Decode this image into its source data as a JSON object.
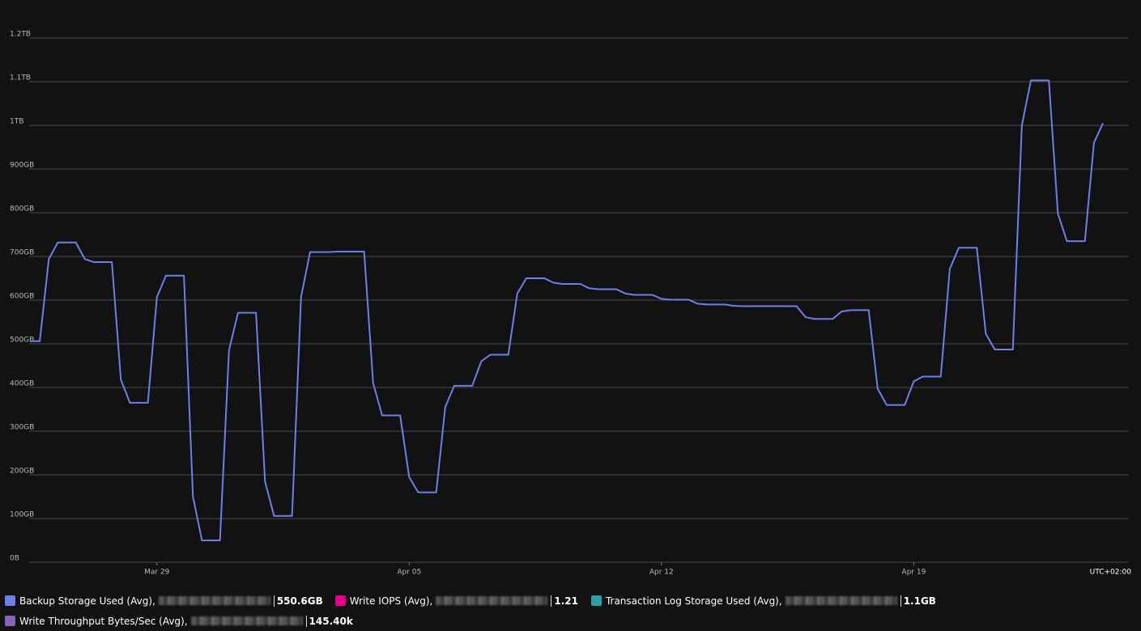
{
  "chart_data": {
    "type": "line",
    "grid": true,
    "timezone": "UTC+02:00",
    "ylim": [
      0,
      1200
    ],
    "yticks": [
      {
        "value": 0,
        "label": "0B"
      },
      {
        "value": 100,
        "label": "100GB"
      },
      {
        "value": 200,
        "label": "200GB"
      },
      {
        "value": 300,
        "label": "300GB"
      },
      {
        "value": 400,
        "label": "400GB"
      },
      {
        "value": 500,
        "label": "500GB"
      },
      {
        "value": 600,
        "label": "600GB"
      },
      {
        "value": 700,
        "label": "700GB"
      },
      {
        "value": 800,
        "label": "800GB"
      },
      {
        "value": 900,
        "label": "900GB"
      },
      {
        "value": 1000,
        "label": "1TB"
      },
      {
        "value": 1100,
        "label": "1.1TB"
      },
      {
        "value": 1200,
        "label": "1.2TB"
      }
    ],
    "categories": [
      null,
      null,
      null,
      null,
      null,
      null,
      null,
      null,
      null,
      null,
      null,
      null,
      null,
      null,
      "Mar 29",
      null,
      null,
      null,
      null,
      null,
      null,
      null,
      null,
      null,
      null,
      null,
      null,
      null,
      null,
      null,
      null,
      null,
      null,
      null,
      null,
      null,
      null,
      null,
      null,
      null,
      null,
      null,
      "Apr 05",
      null,
      null,
      null,
      null,
      null,
      null,
      null,
      null,
      null,
      null,
      null,
      null,
      null,
      null,
      null,
      null,
      null,
      null,
      null,
      null,
      null,
      null,
      null,
      null,
      null,
      null,
      null,
      "Apr 12",
      null,
      null,
      null,
      null,
      null,
      null,
      null,
      null,
      null,
      null,
      null,
      null,
      null,
      null,
      null,
      null,
      null,
      null,
      null,
      null,
      null,
      null,
      null,
      null,
      null,
      null,
      null,
      "Apr 19",
      null,
      null,
      null,
      null,
      null,
      null,
      null,
      null,
      null,
      null,
      null,
      null,
      null,
      null,
      null,
      null,
      null,
      null,
      null,
      null,
      null
    ],
    "series": [
      {
        "name": "Backup Storage Used (Avg),",
        "color": "#6f7ee8",
        "summary": "550.6GB",
        "values": [
          506,
          506,
          694,
          732,
          732,
          732,
          694,
          687,
          687,
          687,
          418,
          365,
          365,
          365,
          607,
          656,
          656,
          656,
          150,
          50,
          50,
          50,
          485,
          571,
          571,
          571,
          185,
          106,
          106,
          106,
          607,
          710,
          710,
          710,
          711,
          711,
          711,
          711,
          410,
          336,
          336,
          336,
          195,
          160,
          160,
          160,
          355,
          404,
          404,
          404,
          460,
          475,
          475,
          475,
          615,
          650,
          650,
          650,
          640,
          637,
          637,
          637,
          627,
          625,
          625,
          625,
          615,
          612,
          612,
          612,
          603,
          601,
          601,
          601,
          592,
          590,
          590,
          590,
          587,
          586,
          586,
          586,
          586,
          586,
          586,
          586,
          561,
          557,
          557,
          557,
          574,
          577,
          577,
          577,
          397,
          360,
          360,
          360,
          414,
          425,
          425,
          425,
          671,
          720,
          720,
          720,
          523,
          487,
          487,
          487,
          1000,
          1103,
          1103,
          1103,
          798,
          735,
          735,
          735,
          960,
          1005
        ]
      },
      {
        "name": "Write IOPS (Avg),",
        "color": "#e3008c",
        "summary": "1.21"
      },
      {
        "name": "Transaction Log Storage Used (Avg),",
        "color": "#2aa0a4",
        "summary": "1.1GB"
      },
      {
        "name": "Write Throughput Bytes/Sec (Avg),",
        "color": "#8764b8",
        "summary": "145.40k"
      }
    ]
  }
}
